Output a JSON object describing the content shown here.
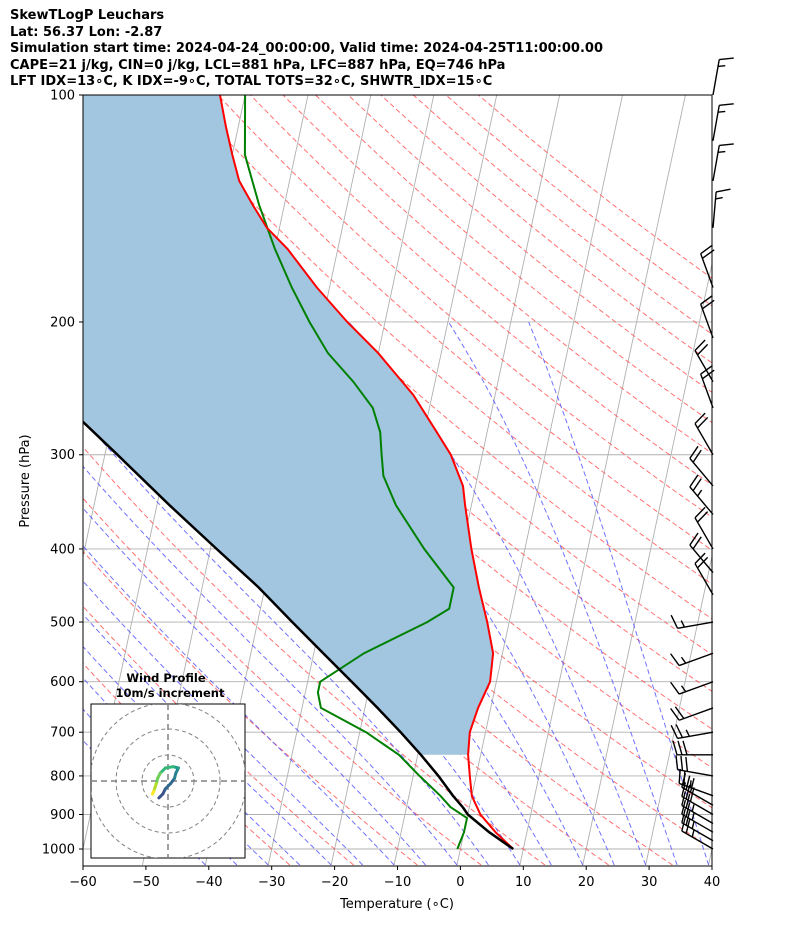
{
  "header": {
    "line1": "SkewTLogP Leuchars",
    "line2": "Lat: 56.37   Lon: -2.87",
    "line3": "Simulation start time: 2024-04-24_00:00:00, Valid time: 2024-04-25T11:00:00.00",
    "line4": "CAPE=21 j/kg, CIN=0 j/kg, LCL=881 hPa, LFC=887 hPa, EQ=746 hPa",
    "line5": "LFT IDX=13∘C, K IDX=-9∘C, TOTAL TOTS=32∘C, SHWTR_IDX=15∘C"
  },
  "chart_data": {
    "type": "skew-t log-p",
    "xlabel": "Temperature (∘C)",
    "ylabel": "Pressure (hPa)",
    "xlim": [
      -60,
      40
    ],
    "ylim": [
      1050,
      100
    ],
    "x_ticks": [
      "−60",
      "−50",
      "−40",
      "−30",
      "−20",
      "−10",
      "0",
      "10",
      "20",
      "30",
      "40"
    ],
    "y_ticks": [
      "100",
      "200",
      "300",
      "400",
      "500",
      "600",
      "700",
      "800",
      "900",
      "1000"
    ],
    "grid": true,
    "series": [
      {
        "color": "#ff0000",
        "points": [
          [
            1000,
            8.4
          ],
          [
            950,
            5
          ],
          [
            900,
            2
          ],
          [
            850,
            0
          ],
          [
            800,
            -1
          ],
          [
            750,
            -2
          ],
          [
            700,
            -2.5
          ],
          [
            650,
            -2
          ],
          [
            600,
            -1
          ],
          [
            550,
            -1.5
          ],
          [
            500,
            -3.5
          ],
          [
            450,
            -6
          ],
          [
            400,
            -8.5
          ],
          [
            350,
            -11
          ],
          [
            330,
            -12
          ],
          [
            300,
            -15
          ],
          [
            280,
            -18
          ],
          [
            250,
            -23
          ],
          [
            220,
            -30
          ],
          [
            200,
            -36
          ],
          [
            180,
            -42
          ],
          [
            160,
            -48
          ],
          [
            150,
            -52
          ],
          [
            140,
            -55
          ],
          [
            130,
            -58
          ],
          [
            120,
            -60
          ],
          [
            110,
            -62
          ],
          [
            100,
            -64
          ]
        ]
      },
      {
        "color": "#008000",
        "points": [
          [
            1000,
            -0.5
          ],
          [
            950,
            0
          ],
          [
            910,
            0
          ],
          [
            880,
            -3
          ],
          [
            850,
            -5
          ],
          [
            800,
            -9
          ],
          [
            750,
            -13
          ],
          [
            700,
            -19
          ],
          [
            650,
            -27
          ],
          [
            620,
            -28
          ],
          [
            600,
            -28
          ],
          [
            550,
            -22
          ],
          [
            500,
            -13
          ],
          [
            480,
            -10
          ],
          [
            450,
            -10
          ],
          [
            400,
            -16
          ],
          [
            350,
            -22
          ],
          [
            320,
            -25
          ],
          [
            300,
            -26
          ],
          [
            280,
            -27
          ],
          [
            260,
            -29
          ],
          [
            240,
            -33
          ],
          [
            220,
            -38
          ],
          [
            200,
            -42
          ],
          [
            180,
            -46
          ],
          [
            160,
            -50
          ],
          [
            140,
            -54
          ],
          [
            120,
            -58
          ],
          [
            100,
            -60
          ]
        ]
      },
      {
        "color": "#000000",
        "points": [
          [
            1000,
            8.4
          ],
          [
            950,
            4
          ],
          [
            900,
            0
          ],
          [
            881,
            -1
          ],
          [
            850,
            -3
          ],
          [
            800,
            -6
          ],
          [
            750,
            -9.5
          ],
          [
            700,
            -13.5
          ],
          [
            650,
            -18
          ],
          [
            600,
            -23
          ],
          [
            550,
            -28.5
          ],
          [
            500,
            -34.5
          ],
          [
            450,
            -41
          ],
          [
            400,
            -49
          ],
          [
            350,
            -58
          ],
          [
            300,
            -68
          ],
          [
            250,
            -80
          ],
          [
            200,
            -94
          ],
          [
            150,
            -112
          ],
          [
            100,
            -135
          ]
        ]
      }
    ],
    "cape_fill_color": "#a2c6df",
    "wind_barbs": [
      {
        "p": 1000,
        "speed": 25,
        "dir": 300
      },
      {
        "p": 975,
        "speed": 25,
        "dir": 300
      },
      {
        "p": 950,
        "speed": 25,
        "dir": 300
      },
      {
        "p": 925,
        "speed": 25,
        "dir": 300
      },
      {
        "p": 900,
        "speed": 30,
        "dir": 300
      },
      {
        "p": 875,
        "speed": 30,
        "dir": 300
      },
      {
        "p": 850,
        "speed": 25,
        "dir": 290
      },
      {
        "p": 800,
        "speed": 30,
        "dir": 280
      },
      {
        "p": 750,
        "speed": 30,
        "dir": 270
      },
      {
        "p": 700,
        "speed": 25,
        "dir": 260
      },
      {
        "p": 650,
        "speed": 20,
        "dir": 250
      },
      {
        "p": 600,
        "speed": 15,
        "dir": 250
      },
      {
        "p": 550,
        "speed": 15,
        "dir": 250
      },
      {
        "p": 500,
        "speed": 15,
        "dir": 260
      },
      {
        "p": 460,
        "speed": 20,
        "dir": 330
      },
      {
        "p": 430,
        "speed": 20,
        "dir": 320
      },
      {
        "p": 400,
        "speed": 20,
        "dir": 330
      },
      {
        "p": 360,
        "speed": 25,
        "dir": 320
      },
      {
        "p": 330,
        "speed": 20,
        "dir": 320
      },
      {
        "p": 300,
        "speed": 20,
        "dir": 330
      },
      {
        "p": 260,
        "speed": 20,
        "dir": 340
      },
      {
        "p": 240,
        "speed": 20,
        "dir": 330
      },
      {
        "p": 210,
        "speed": 20,
        "dir": 340
      },
      {
        "p": 180,
        "speed": 20,
        "dir": 340
      },
      {
        "p": 150,
        "speed": 15,
        "dir": 5
      },
      {
        "p": 130,
        "speed": 15,
        "dir": 10
      },
      {
        "p": 115,
        "speed": 15,
        "dir": 10
      },
      {
        "p": 100,
        "speed": 15,
        "dir": 10
      }
    ],
    "inset": {
      "title": "Wind Profile",
      "subtitle": "10m/s increment",
      "rings": [
        10,
        20,
        30
      ],
      "hodograph": [
        [
          -3.5,
          6.5
        ],
        [
          -2,
          5
        ],
        [
          -1,
          3
        ],
        [
          1,
          1
        ],
        [
          2.5,
          -1
        ],
        [
          3,
          -3
        ],
        [
          4,
          -5
        ],
        [
          2,
          -5.5
        ],
        [
          -1,
          -5
        ],
        [
          -3,
          -3
        ],
        [
          -4,
          -1
        ],
        [
          -4.5,
          1
        ],
        [
          -5,
          2.5
        ],
        [
          -5.5,
          4
        ],
        [
          -6,
          5
        ]
      ]
    }
  }
}
